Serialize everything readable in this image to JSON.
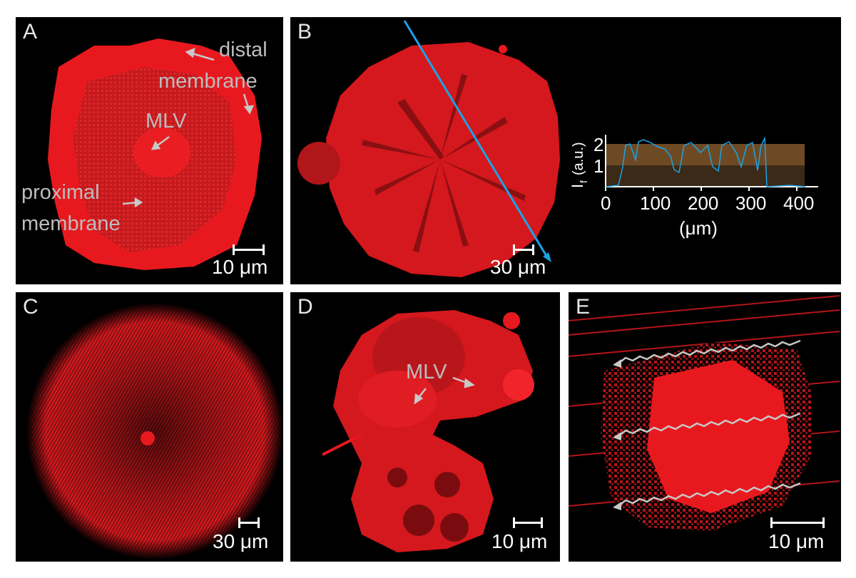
{
  "panels": {
    "A": {
      "label": "A",
      "scale": "10 μm",
      "annotations": {
        "distal": "distal",
        "membrane_top": "membrane",
        "mlv": "MLV",
        "proximal": "proximal",
        "membrane_bottom": "membrane"
      }
    },
    "B": {
      "label": "B",
      "scale": "30 μm",
      "inset": {
        "ylabel": "I",
        "ylabel_sub": "f",
        "ylabel_units": "(a.u.)",
        "xlabel": "(μm)",
        "xticks": [
          "0",
          "100",
          "200",
          "300",
          "400"
        ],
        "yticks": [
          "1",
          "2"
        ]
      }
    },
    "C": {
      "label": "C",
      "scale": "30 μm"
    },
    "D": {
      "label": "D",
      "scale": "10 μm",
      "annotations": {
        "mlv": "MLV"
      }
    },
    "E": {
      "label": "E",
      "scale": "10 μm"
    }
  },
  "colors": {
    "fluor": "#e3151b",
    "line": "#1aa3e8",
    "arrow": "#c8c8c8",
    "band": "#6e4a24"
  }
}
